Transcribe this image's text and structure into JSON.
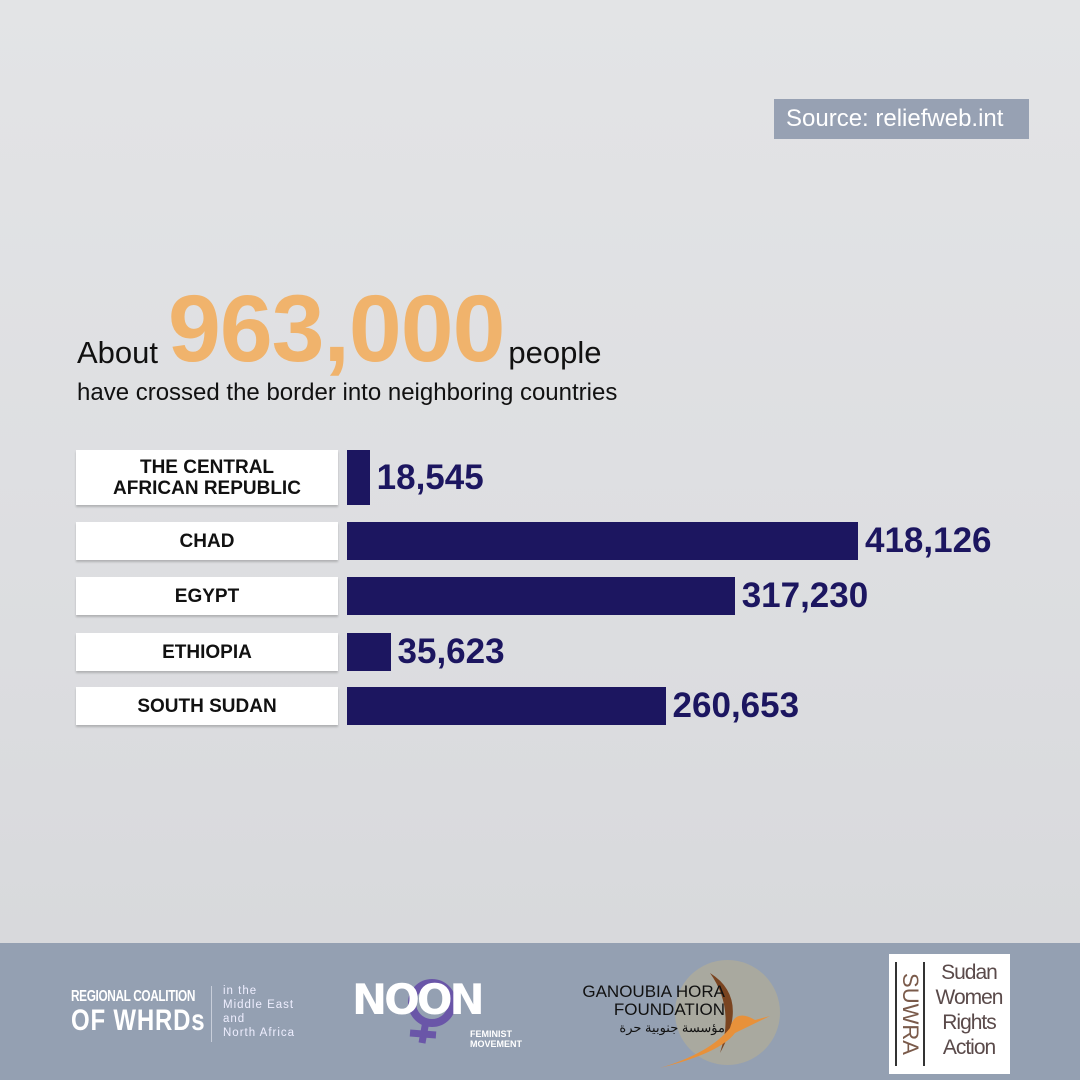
{
  "source": "Source: reliefweb.int",
  "headline": {
    "prefix": "About",
    "number": "963,000",
    "suffix": "people",
    "subtitle": "have crossed the border into neighboring countries"
  },
  "colors": {
    "bar": "#1c1660",
    "highlight": "#f0b36c",
    "footer": "#94a0b2"
  },
  "chart_data": {
    "type": "bar",
    "orientation": "horizontal",
    "categories": [
      "THE CENTRAL AFRICAN REPUBLIC",
      "CHAD",
      "EGYPT",
      "ETHIOPIA",
      "SOUTH SUDAN"
    ],
    "values": [
      18545,
      418126,
      317230,
      35623,
      260653
    ],
    "value_labels": [
      "18,545",
      "418,126",
      "317,230",
      "35,623",
      "260,653"
    ],
    "grid": false
  },
  "footer": {
    "logos": [
      {
        "name": "REGIONAL COALITION OF WHRDs",
        "line1": "REGIONAL COALITION",
        "line2": "OF WHRDs",
        "tagline": [
          "in the",
          "Middle East",
          "and",
          "North Africa"
        ]
      },
      {
        "name": "NOON FEMINIST MOVEMENT",
        "word": "NOON",
        "tagline": [
          "FEMINIST",
          "MOVEMENT"
        ]
      },
      {
        "name": "GANOUBIA HORA FOUNDATION",
        "line1": "GANOUBIA HORA",
        "line2": "FOUNDATION",
        "arabic": "مؤسسة جنوبية حرة"
      },
      {
        "name": "SUWRA Sudan Women Rights Action",
        "vertical": "SUWRA",
        "lines": [
          "Sudan",
          "Women",
          "Rights",
          "Action"
        ]
      }
    ]
  }
}
